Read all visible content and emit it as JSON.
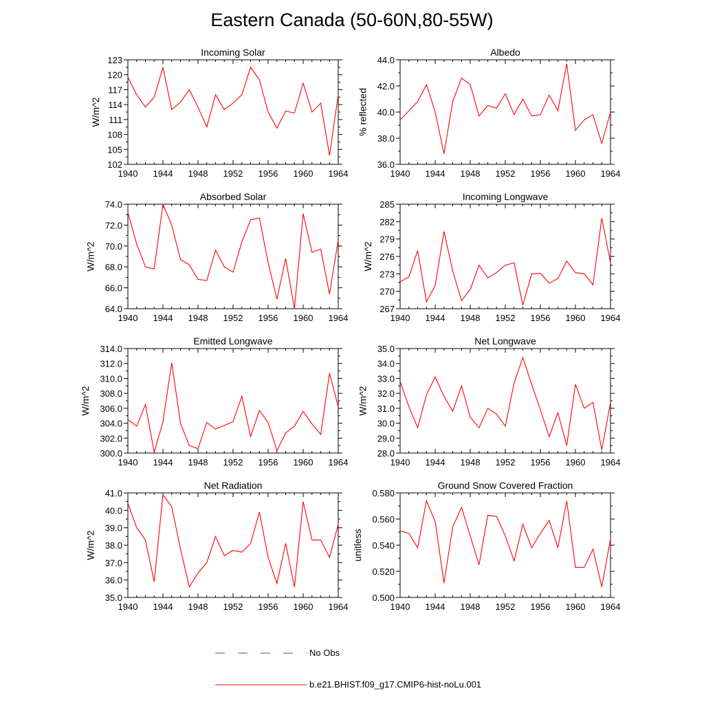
{
  "title": "Eastern Canada (50-60N,80-55W)",
  "legend": {
    "items": [
      {
        "label": "No Obs",
        "color": "#4b4bb0",
        "dash": true
      },
      {
        "label": "b.e21.BHIST.f09_g17.CMIP6-hist-noLu.001",
        "color": "#ff0000",
        "dash": false
      }
    ]
  },
  "chart_data": [
    {
      "type": "line",
      "title": "Incoming Solar",
      "ylabel": "W/m^2",
      "xlim": [
        1940,
        1964
      ],
      "ylim": [
        102,
        123
      ],
      "xticks": [
        "1940",
        "1944",
        "1948",
        "1952",
        "1956",
        "1960",
        "1964"
      ],
      "yticks": [
        "102",
        "105",
        "108",
        "111",
        "114",
        "117",
        "120",
        "123"
      ],
      "x": [
        1940,
        1941,
        1942,
        1943,
        1944,
        1945,
        1946,
        1947,
        1948,
        1949,
        1950,
        1951,
        1952,
        1953,
        1954,
        1955,
        1956,
        1957,
        1958,
        1959,
        1960,
        1961,
        1962,
        1963,
        1964
      ],
      "series": [
        {
          "color": "#ff0000",
          "values": [
            119.5,
            116,
            113.5,
            115.5,
            121.5,
            113,
            114.5,
            117,
            113.5,
            109.5,
            116,
            113,
            114.3,
            116,
            121.5,
            119,
            112.5,
            109.3,
            112.7,
            112.3,
            118.3,
            112.5,
            114.3,
            103.8,
            116
          ]
        }
      ]
    },
    {
      "type": "line",
      "title": "Albedo",
      "ylabel": "% reflected",
      "xlim": [
        1940,
        1964
      ],
      "ylim": [
        36,
        44
      ],
      "xticks": [
        "1940",
        "1944",
        "1948",
        "1952",
        "1956",
        "1960",
        "1964"
      ],
      "yticks": [
        "36.0",
        "38.0",
        "40.0",
        "42.0",
        "44.0"
      ],
      "x": [
        1940,
        1941,
        1942,
        1943,
        1944,
        1945,
        1946,
        1947,
        1948,
        1949,
        1950,
        1951,
        1952,
        1953,
        1954,
        1955,
        1956,
        1957,
        1958,
        1959,
        1960,
        1961,
        1962,
        1963,
        1964
      ],
      "series": [
        {
          "color": "#ff0000",
          "values": [
            39.4,
            40.1,
            40.8,
            42.1,
            40.0,
            36.8,
            40.8,
            42.6,
            42.1,
            39.7,
            40.5,
            40.3,
            41.4,
            39.8,
            41.0,
            39.7,
            39.8,
            41.3,
            40.1,
            43.7,
            38.6,
            39.4,
            39.8,
            37.6,
            40.0
          ]
        }
      ]
    },
    {
      "type": "line",
      "title": "Absorbed Solar",
      "ylabel": "W/m^2",
      "xlim": [
        1940,
        1964
      ],
      "ylim": [
        64,
        74
      ],
      "xticks": [
        "1940",
        "1944",
        "1948",
        "1952",
        "1956",
        "1960",
        "1964"
      ],
      "yticks": [
        "64.0",
        "66.0",
        "68.0",
        "70.0",
        "72.0",
        "74.0"
      ],
      "x": [
        1940,
        1941,
        1942,
        1943,
        1944,
        1945,
        1946,
        1947,
        1948,
        1949,
        1950,
        1951,
        1952,
        1953,
        1954,
        1955,
        1956,
        1957,
        1958,
        1959,
        1960,
        1961,
        1962,
        1963,
        1964
      ],
      "series": [
        {
          "color": "#ff0000",
          "values": [
            73.2,
            70.2,
            68.0,
            67.8,
            74.0,
            72.0,
            68.7,
            68.2,
            66.8,
            66.7,
            69.6,
            68.0,
            67.5,
            70.4,
            72.5,
            72.7,
            68.4,
            64.9,
            68.8,
            64.0,
            73.1,
            69.4,
            69.7,
            65.4,
            70.6
          ]
        }
      ]
    },
    {
      "type": "line",
      "title": "Incoming Longwave",
      "ylabel": "W/m^2",
      "xlim": [
        1940,
        1964
      ],
      "ylim": [
        267,
        285
      ],
      "xticks": [
        "1940",
        "1944",
        "1948",
        "1952",
        "1956",
        "1960",
        "1964"
      ],
      "yticks": [
        "267",
        "270",
        "273",
        "276",
        "279",
        "282",
        "285"
      ],
      "x": [
        1940,
        1941,
        1942,
        1943,
        1944,
        1945,
        1946,
        1947,
        1948,
        1949,
        1950,
        1951,
        1952,
        1953,
        1954,
        1955,
        1956,
        1957,
        1958,
        1959,
        1960,
        1961,
        1962,
        1963,
        1964
      ],
      "series": [
        {
          "color": "#ff0000",
          "values": [
            271.6,
            272.5,
            277.0,
            268.2,
            271.0,
            280.3,
            273.5,
            268.4,
            270.3,
            274.5,
            272.3,
            273.2,
            274.5,
            274.9,
            267.6,
            273.0,
            273.1,
            271.4,
            272.2,
            275.2,
            273.2,
            273.0,
            271.1,
            282.6,
            274.9
          ]
        }
      ]
    },
    {
      "type": "line",
      "title": "Emitted Longwave",
      "ylabel": "W/m^2",
      "xlim": [
        1940,
        1964
      ],
      "ylim": [
        300,
        314
      ],
      "xticks": [
        "1940",
        "1944",
        "1948",
        "1952",
        "1956",
        "1960",
        "1964"
      ],
      "yticks": [
        "300.0",
        "302.0",
        "304.0",
        "306.0",
        "308.0",
        "310.0",
        "312.0",
        "314.0"
      ],
      "x": [
        1940,
        1941,
        1942,
        1943,
        1944,
        1945,
        1946,
        1947,
        1948,
        1949,
        1950,
        1951,
        1952,
        1953,
        1954,
        1955,
        1956,
        1957,
        1958,
        1959,
        1960,
        1961,
        1962,
        1963,
        1964
      ],
      "series": [
        {
          "color": "#ff0000",
          "values": [
            304.5,
            303.6,
            306.5,
            300.1,
            304.2,
            312.1,
            304.0,
            301.0,
            300.6,
            304.1,
            303.2,
            303.7,
            304.2,
            307.6,
            302.2,
            305.7,
            304.1,
            300.3,
            302.7,
            303.6,
            305.6,
            303.9,
            302.5,
            310.7,
            306.2
          ]
        }
      ]
    },
    {
      "type": "line",
      "title": "Net Longwave",
      "ylabel": "W/m^2",
      "xlim": [
        1940,
        1964
      ],
      "ylim": [
        28,
        35
      ],
      "xticks": [
        "1940",
        "1944",
        "1948",
        "1952",
        "1956",
        "1960",
        "1964"
      ],
      "yticks": [
        "28.0",
        "29.0",
        "30.0",
        "31.0",
        "32.0",
        "33.0",
        "34.0",
        "35.0"
      ],
      "x": [
        1940,
        1941,
        1942,
        1943,
        1944,
        1945,
        1946,
        1947,
        1948,
        1949,
        1950,
        1951,
        1952,
        1953,
        1954,
        1955,
        1956,
        1957,
        1958,
        1959,
        1960,
        1961,
        1962,
        1963,
        1964
      ],
      "series": [
        {
          "color": "#ff0000",
          "values": [
            32.8,
            31.1,
            29.7,
            31.9,
            33.1,
            31.8,
            30.8,
            32.5,
            30.4,
            29.7,
            31.0,
            30.6,
            29.8,
            32.7,
            34.4,
            32.6,
            30.9,
            29.1,
            30.7,
            28.5,
            32.6,
            31.0,
            31.4,
            28.2,
            31.4
          ]
        }
      ]
    },
    {
      "type": "line",
      "title": "Net Radiation",
      "ylabel": "W/m^2",
      "xlim": [
        1940,
        1964
      ],
      "ylim": [
        35,
        41
      ],
      "xticks": [
        "1940",
        "1944",
        "1948",
        "1952",
        "1956",
        "1960",
        "1964"
      ],
      "yticks": [
        "35.0",
        "36.0",
        "37.0",
        "38.0",
        "39.0",
        "40.0",
        "41.0"
      ],
      "x": [
        1940,
        1941,
        1942,
        1943,
        1944,
        1945,
        1946,
        1947,
        1948,
        1949,
        1950,
        1951,
        1952,
        1953,
        1954,
        1955,
        1956,
        1957,
        1958,
        1959,
        1960,
        1961,
        1962,
        1963,
        1964
      ],
      "series": [
        {
          "color": "#ff0000",
          "values": [
            40.4,
            39.0,
            38.3,
            35.9,
            40.9,
            40.2,
            37.8,
            35.6,
            36.4,
            37.0,
            38.5,
            37.4,
            37.7,
            37.6,
            38.1,
            39.9,
            37.3,
            35.8,
            38.1,
            35.6,
            40.5,
            38.3,
            38.3,
            37.3,
            39.2
          ]
        }
      ]
    },
    {
      "type": "line",
      "title": "Ground Snow Covered Fraction",
      "ylabel": "unitless",
      "xlim": [
        1940,
        1964
      ],
      "ylim": [
        0.5,
        0.58
      ],
      "xticks": [
        "1940",
        "1944",
        "1948",
        "1952",
        "1956",
        "1960",
        "1964"
      ],
      "yticks": [
        "0.500",
        "0.520",
        "0.540",
        "0.560",
        "0.580"
      ],
      "x": [
        1940,
        1941,
        1942,
        1943,
        1944,
        1945,
        1946,
        1947,
        1948,
        1949,
        1950,
        1951,
        1952,
        1953,
        1954,
        1955,
        1956,
        1957,
        1958,
        1959,
        1960,
        1961,
        1962,
        1963,
        1964
      ],
      "series": [
        {
          "color": "#ff0000",
          "values": [
            0.551,
            0.549,
            0.538,
            0.574,
            0.558,
            0.511,
            0.554,
            0.569,
            0.547,
            0.525,
            0.563,
            0.562,
            0.547,
            0.528,
            0.556,
            0.538,
            0.549,
            0.559,
            0.538,
            0.574,
            0.523,
            0.523,
            0.537,
            0.508,
            0.545
          ]
        }
      ]
    }
  ]
}
